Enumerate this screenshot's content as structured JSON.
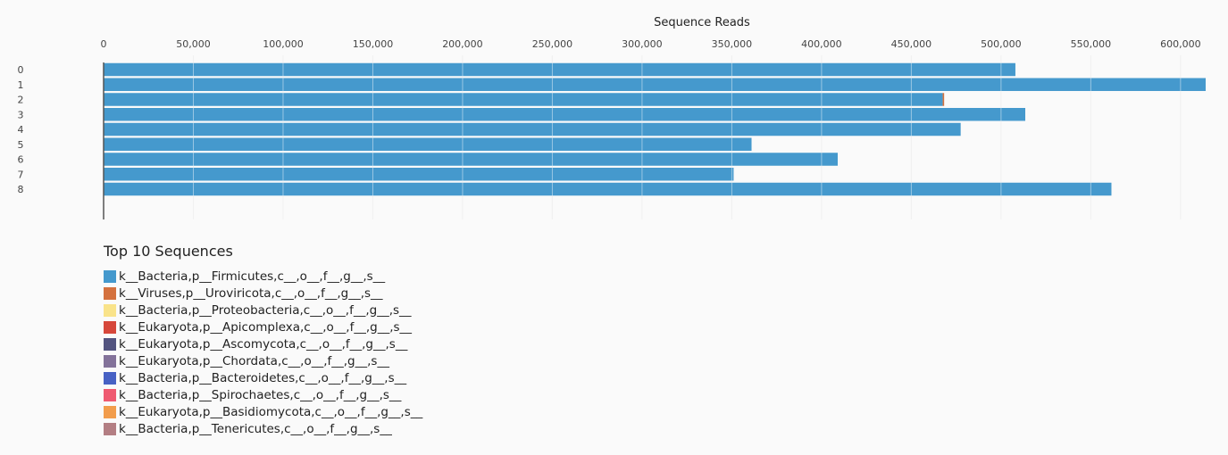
{
  "chart_data": {
    "type": "bar",
    "orientation": "horizontal",
    "stacked": true,
    "xlabel": "Sequence Reads",
    "xlim": [
      0,
      615000
    ],
    "x_ticks": [
      0,
      50000,
      100000,
      150000,
      200000,
      250000,
      300000,
      350000,
      400000,
      450000,
      500000,
      550000,
      600000
    ],
    "x_tick_labels": [
      "0",
      "50,000",
      "100,000",
      "150,000",
      "200,000",
      "250,000",
      "300,000",
      "350,000",
      "400,000",
      "450,000",
      "500,000",
      "550,000",
      "600,000"
    ],
    "categories": [
      "0",
      "1",
      "2",
      "3",
      "4",
      "5",
      "6",
      "7",
      "8"
    ],
    "grid": true,
    "legend_title": "Top 10 Sequences",
    "legend_placement": "bottom-left",
    "series": [
      {
        "name": "k__Bacteria,p__Firmicutes,c__,o__,f__,g__,s__",
        "color": "#4599cd",
        "values": [
          508000,
          614000,
          467500,
          513500,
          477500,
          361000,
          409000,
          351000,
          561500
        ]
      },
      {
        "name": "k__Viruses,p__Uroviricota,c__,o__,f__,g__,s__",
        "color": "#d4713e",
        "values": [
          0,
          0,
          800,
          0,
          0,
          0,
          0,
          0,
          0
        ]
      },
      {
        "name": "k__Bacteria,p__Proteobacteria,c__,o__,f__,g__,s__",
        "color": "#f9e38a",
        "values": [
          0,
          0,
          0,
          0,
          0,
          0,
          0,
          0,
          0
        ]
      },
      {
        "name": "k__Eukaryota,p__Apicomplexa,c__,o__,f__,g__,s__",
        "color": "#d6473b",
        "values": [
          0,
          0,
          0,
          0,
          0,
          0,
          0,
          0,
          0
        ]
      },
      {
        "name": "k__Eukaryota,p__Ascomycota,c__,o__,f__,g__,s__",
        "color": "#535480",
        "values": [
          0,
          0,
          0,
          0,
          0,
          0,
          0,
          0,
          0
        ]
      },
      {
        "name": "k__Eukaryota,p__Chordata,c__,o__,f__,g__,s__",
        "color": "#83729a",
        "values": [
          0,
          0,
          0,
          0,
          0,
          0,
          0,
          0,
          0
        ]
      },
      {
        "name": "k__Bacteria,p__Bacteroidetes,c__,o__,f__,g__,s__",
        "color": "#4761c4",
        "values": [
          0,
          0,
          0,
          0,
          0,
          0,
          0,
          0,
          0
        ]
      },
      {
        "name": "k__Bacteria,p__Spirochaetes,c__,o__,f__,g__,s__",
        "color": "#ef5a71",
        "values": [
          0,
          0,
          0,
          0,
          0,
          0,
          0,
          0,
          0
        ]
      },
      {
        "name": "k__Eukaryota,p__Basidiomycota,c__,o__,f__,g__,s__",
        "color": "#f29d4c",
        "values": [
          0,
          0,
          0,
          0,
          0,
          0,
          0,
          0,
          0
        ]
      },
      {
        "name": "k__Bacteria,p__Tenericutes,c__,o__,f__,g__,s__",
        "color": "#b37e83",
        "values": [
          0,
          0,
          0,
          0,
          0,
          0,
          0,
          0,
          0
        ]
      }
    ]
  }
}
